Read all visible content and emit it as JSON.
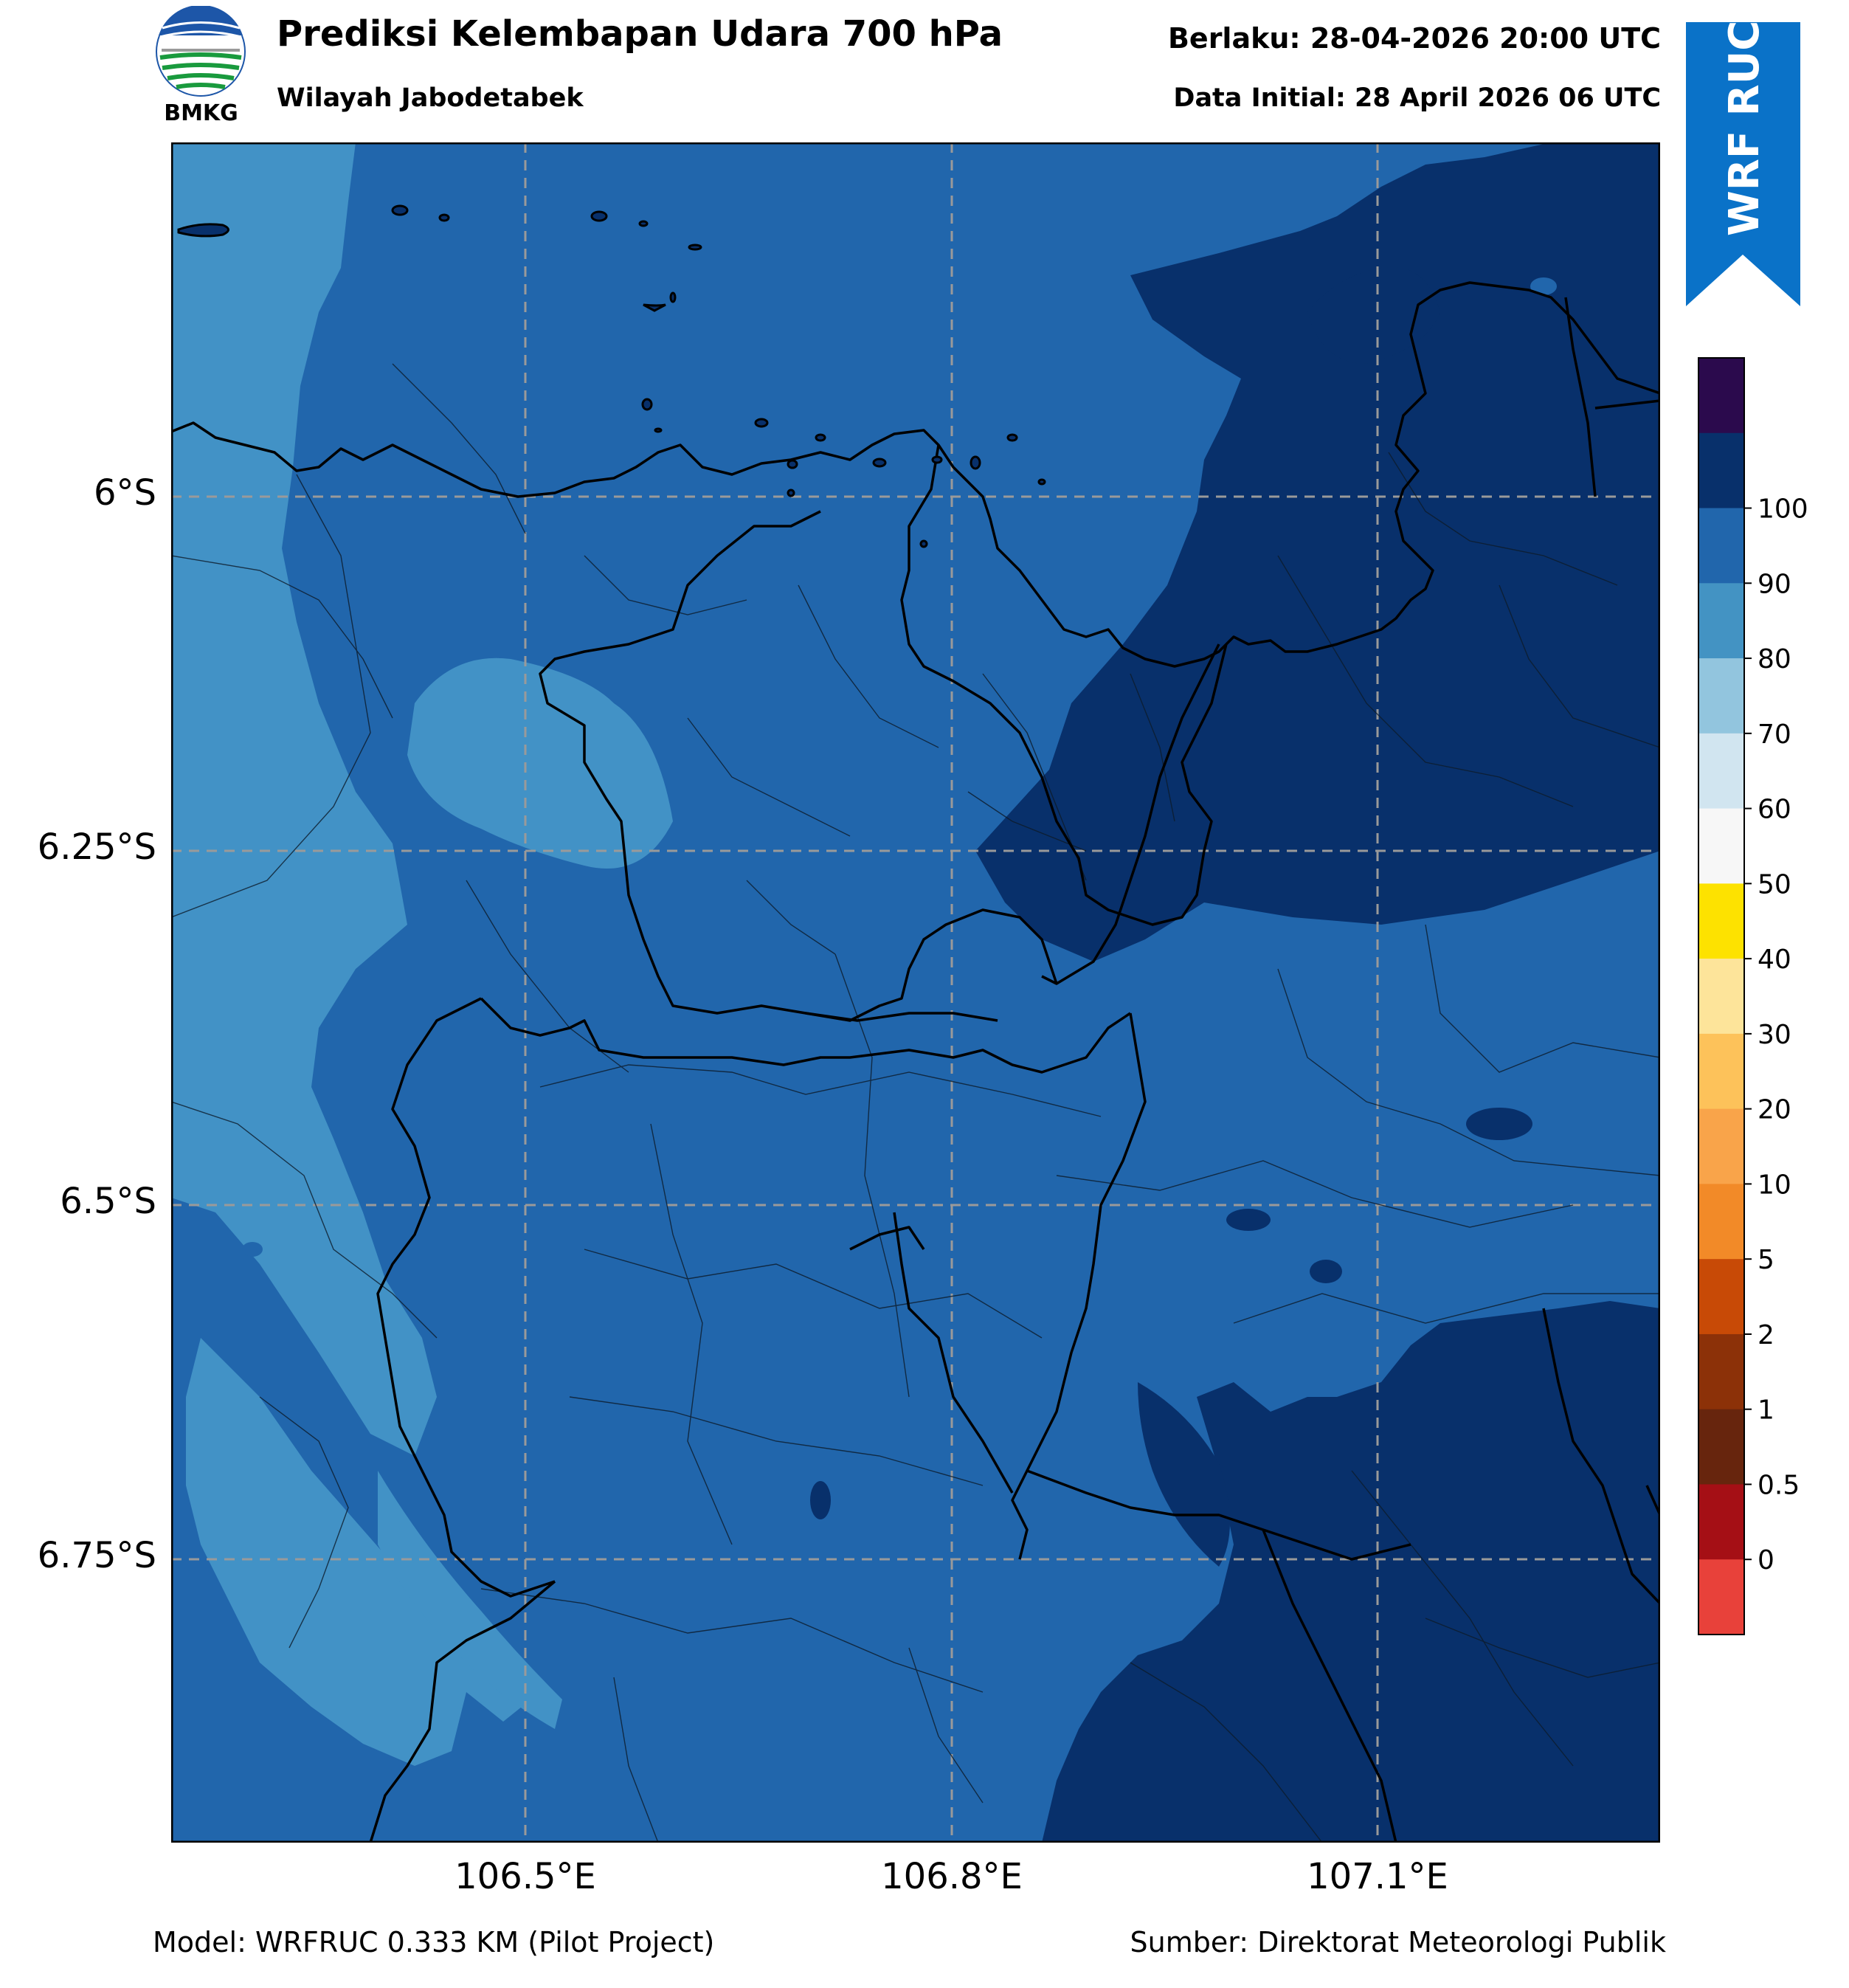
{
  "header": {
    "logo_text": "BMKG",
    "title": "Prediksi Kelembapan Udara 700 hPa",
    "subtitle": "Wilayah Jabodetabek",
    "valid": "Berlaku: 28-04-2026 20:00 UTC",
    "initial": "Data Initial: 28 April 2026 06 UTC",
    "ribbon": "WRF RUC"
  },
  "map": {
    "lat_labels": [
      "6°S",
      "6.25°S",
      "6.5°S",
      "6.75°S"
    ],
    "lon_labels": [
      "106.5°E",
      "106.8°E",
      "107.1°E"
    ],
    "colors": {
      "c70_80": "#4292c6",
      "c80_90": "#2166ac",
      "c90_100": "#08306b",
      "coast": "#000000",
      "grid": "#9a9a9a"
    }
  },
  "colorbar": {
    "labels": [
      "0",
      "0.5",
      "1",
      "2",
      "5",
      "10",
      "20",
      "30",
      "40",
      "50",
      "60",
      "70",
      "80",
      "90",
      "100"
    ],
    "colors": [
      "#e8413a",
      "#a50f15",
      "#67250d",
      "#8c3108",
      "#c84a06",
      "#f28a28",
      "#f9a44a",
      "#fdc25a",
      "#fde49a",
      "#fde200",
      "#f7f7f7",
      "#d1e5f0",
      "#92c5de",
      "#4393c3",
      "#2166ac",
      "#08306b",
      "#2b0a4d"
    ]
  },
  "footer": {
    "model": "Model: WRFRUC 0.333 KM (Pilot Project)",
    "source": "Sumber: Direktorat Meteorologi Publik"
  }
}
